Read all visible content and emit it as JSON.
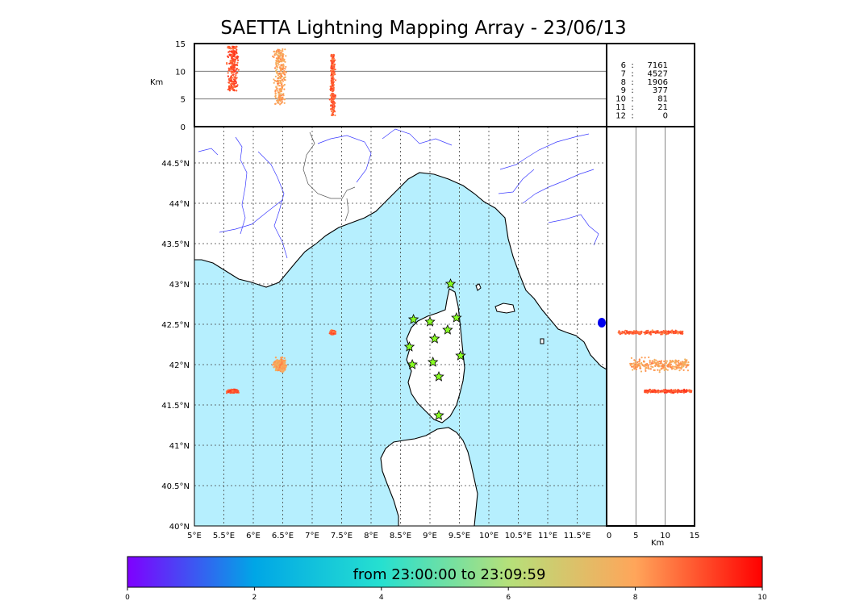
{
  "title": "SAETTA Lightning Mapping Array - 23/06/13",
  "map": {
    "lon_ticks": [
      "5°E",
      "5.5°E",
      "6°E",
      "6.5°E",
      "7°E",
      "7.5°E",
      "8°E",
      "8.5°E",
      "9°E",
      "9.5°E",
      "10°E",
      "10.5°E",
      "11°E",
      "11.5°E"
    ],
    "lat_ticks": [
      "40°N",
      "40.5°N",
      "41°N",
      "41.5°N",
      "42°N",
      "42.5°N",
      "43°N",
      "43.5°N",
      "44°N",
      "44.5°N"
    ],
    "lon_range": [
      5,
      12
    ],
    "lat_range": [
      40,
      44.95
    ],
    "colors": {
      "sea": "#b6effe",
      "land": "#ffffff",
      "coast": "#000000",
      "rivers": "#3b3bff",
      "borders": "#555555",
      "stations": "#88ff22"
    },
    "stations": [
      {
        "lon": 9.35,
        "lat": 43.0
      },
      {
        "lon": 8.72,
        "lat": 42.56
      },
      {
        "lon": 9.0,
        "lat": 42.53
      },
      {
        "lon": 9.45,
        "lat": 42.58
      },
      {
        "lon": 9.3,
        "lat": 42.43
      },
      {
        "lon": 9.08,
        "lat": 42.32
      },
      {
        "lon": 8.65,
        "lat": 42.22
      },
      {
        "lon": 9.52,
        "lat": 42.11
      },
      {
        "lon": 8.7,
        "lat": 42.0
      },
      {
        "lon": 9.05,
        "lat": 42.03
      },
      {
        "lon": 9.15,
        "lat": 41.85
      },
      {
        "lon": 9.15,
        "lat": 41.37
      }
    ]
  },
  "top_panel": {
    "ylabel": "Km",
    "yticks": [
      "0",
      "5",
      "10",
      "15"
    ],
    "yrange": [
      0,
      15
    ]
  },
  "right_panel": {
    "xlabel": "Km",
    "xticks": [
      "0",
      "5",
      "10",
      "15"
    ],
    "xrange": [
      0,
      15
    ]
  },
  "station_counts": [
    {
      "n": "6",
      "sep": ":",
      "count": "7161",
      "color": "#000000"
    },
    {
      "n": "7",
      "sep": ":",
      "count": "4527",
      "color": "#ff0000"
    },
    {
      "n": "8",
      "sep": ":",
      "count": "1906",
      "color": "#000000"
    },
    {
      "n": "9",
      "sep": ":",
      "count": "377",
      "color": "#000000"
    },
    {
      "n": "10",
      "sep": ":",
      "count": "81",
      "color": "#000000"
    },
    {
      "n": "11",
      "sep": ":",
      "count": "21",
      "color": "#000000"
    },
    {
      "n": "12",
      "sep": ":",
      "count": "0",
      "color": "#000000"
    }
  ],
  "colorbar": {
    "label": "from 23:00:00 to 23:09:59",
    "ticks": [
      "0",
      "2",
      "4",
      "6",
      "8",
      "10"
    ],
    "range": [
      0,
      10
    ],
    "stops": [
      "#7f00ff",
      "#00a6e6",
      "#26e0d0",
      "#b5e07a",
      "#ffa55a",
      "#ff0000"
    ]
  },
  "chart_data": {
    "type": "scatter",
    "title": "SAETTA Lightning Mapping Array - 23/06/13",
    "xlabel": "",
    "ylabel": "",
    "xlim": [
      5,
      12
    ],
    "ylim": [
      40,
      44.95
    ],
    "color_scale": "minutes after 23:00:00",
    "series": [
      {
        "lon": 5.65,
        "lat": 41.67,
        "lon_spread": 0.12,
        "lat_spread": 0.025,
        "alt_min": 6.5,
        "alt_max": 14.5,
        "minute": 9.0
      },
      {
        "lon": 6.45,
        "lat": 42.0,
        "lon_spread": 0.15,
        "lat_spread": 0.1,
        "alt_min": 4.0,
        "alt_max": 14.0,
        "minute": 8.0
      },
      {
        "lon": 7.35,
        "lat": 42.4,
        "lon_spread": 0.06,
        "lat_spread": 0.03,
        "alt_min": 2.0,
        "alt_max": 13.0,
        "minute": 8.8
      }
    ]
  }
}
